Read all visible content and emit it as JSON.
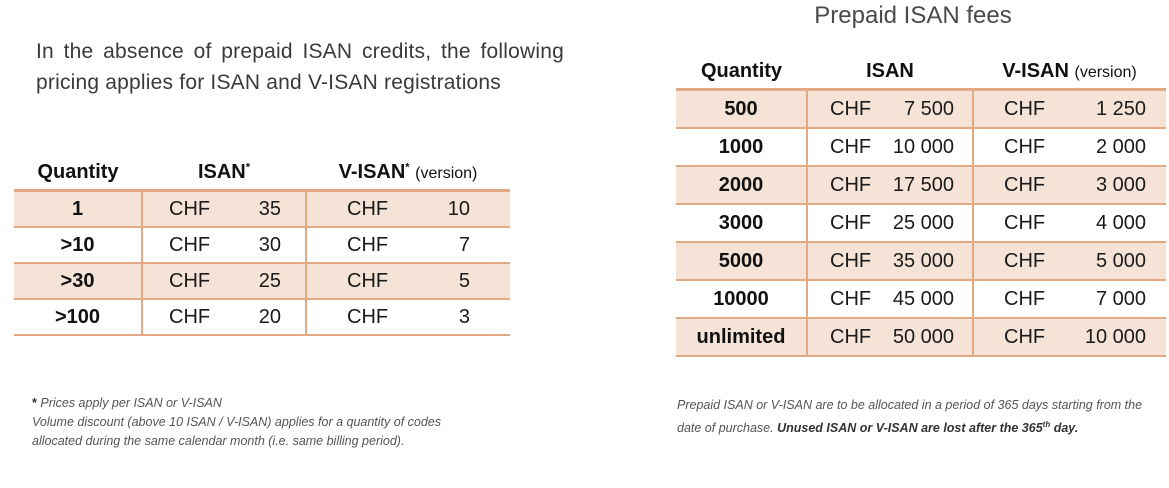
{
  "left": {
    "intro": "In the absence of prepaid ISAN credits, the following pricing applies for ISAN and V-ISAN registrations",
    "table": {
      "headers": {
        "quantity": "Quantity",
        "isan": "ISAN",
        "isan_mark": "*",
        "visan": "V-ISAN",
        "visan_mark": "*",
        "visan_suffix": "(version)"
      },
      "rows": [
        {
          "quantity": "1",
          "isan_currency": "CHF",
          "isan_price": "35",
          "visan_currency": "CHF",
          "visan_price": "10"
        },
        {
          "quantity": ">10",
          "isan_currency": "CHF",
          "isan_price": "30",
          "visan_currency": "CHF",
          "visan_price": "7"
        },
        {
          "quantity": ">30",
          "isan_currency": "CHF",
          "isan_price": "25",
          "visan_currency": "CHF",
          "visan_price": "5"
        },
        {
          "quantity": ">100",
          "isan_currency": "CHF",
          "isan_price": "20",
          "visan_currency": "CHF",
          "visan_price": "3"
        }
      ]
    },
    "note": {
      "star": "*",
      "line1": "Prices apply per ISAN or V-ISAN",
      "line2": "Volume discount (above 10 ISAN / V-ISAN) applies for a quantity of codes allocated during the same calendar month (i.e. same billing period)."
    }
  },
  "right": {
    "title": "Prepaid ISAN fees",
    "table": {
      "headers": {
        "quantity": "Quantity",
        "isan": "ISAN",
        "visan": "V-ISAN",
        "visan_suffix": "(version)"
      },
      "rows": [
        {
          "quantity": "500",
          "isan_currency": "CHF",
          "isan_price": "7 500",
          "visan_currency": "CHF",
          "visan_price": "1 250"
        },
        {
          "quantity": "1000",
          "isan_currency": "CHF",
          "isan_price": "10 000",
          "visan_currency": "CHF",
          "visan_price": "2 000"
        },
        {
          "quantity": "2000",
          "isan_currency": "CHF",
          "isan_price": "17 500",
          "visan_currency": "CHF",
          "visan_price": "3 000"
        },
        {
          "quantity": "3000",
          "isan_currency": "CHF",
          "isan_price": "25 000",
          "visan_currency": "CHF",
          "visan_price": "4 000"
        },
        {
          "quantity": "5000",
          "isan_currency": "CHF",
          "isan_price": "35 000",
          "visan_currency": "CHF",
          "visan_price": "5 000"
        },
        {
          "quantity": "10000",
          "isan_currency": "CHF",
          "isan_price": "45 000",
          "visan_currency": "CHF",
          "visan_price": "7 000"
        },
        {
          "quantity": "unlimited",
          "isan_currency": "CHF",
          "isan_price": "50 000",
          "visan_currency": "CHF",
          "visan_price": "10 000"
        }
      ]
    },
    "note": {
      "text": "Prepaid ISAN or V-ISAN are to be allocated in a period of 365 days starting from the date of purchase. ",
      "bold_pre": "Unused ISAN or V-ISAN are lost after the 365",
      "bold_sup": "th",
      "bold_post": " day."
    }
  },
  "colors": {
    "row_shade": "#f5e3d7",
    "border": "#e3a983"
  }
}
